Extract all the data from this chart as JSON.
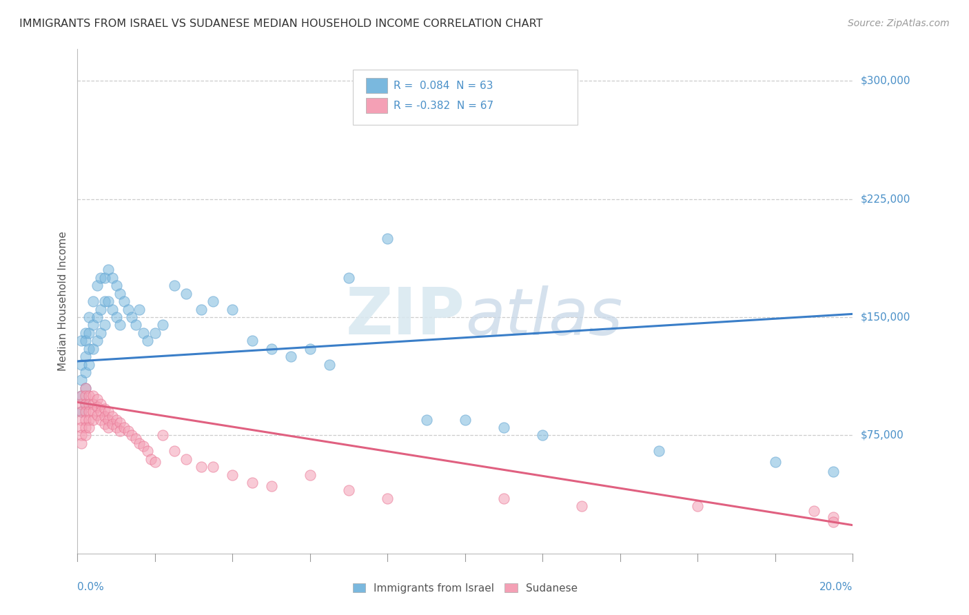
{
  "title": "IMMIGRANTS FROM ISRAEL VS SUDANESE MEDIAN HOUSEHOLD INCOME CORRELATION CHART",
  "source": "Source: ZipAtlas.com",
  "ylabel": "Median Household Income",
  "xmin": 0.0,
  "xmax": 0.2,
  "ymin": 0,
  "ymax": 320000,
  "yticks": [
    75000,
    150000,
    225000,
    300000
  ],
  "ytick_labels": [
    "$75,000",
    "$150,000",
    "$225,000",
    "$300,000"
  ],
  "watermark_zip": "ZIP",
  "watermark_atlas": "atlas",
  "background_color": "#ffffff",
  "grid_color": "#cccccc",
  "title_color": "#333333",
  "tick_label_color": "#4a90c8",
  "israel_color": "#7ab8de",
  "israel_edge": "#5a9fcf",
  "sudan_color": "#f4a0b5",
  "sudan_edge": "#e87090",
  "israel_trend_color": "#3a7ec8",
  "sudan_trend_color": "#e06080",
  "israel_trend_y0": 122000,
  "israel_trend_y1": 152000,
  "sudan_trend_y0": 96000,
  "sudan_trend_y1": 18000,
  "legend_r1": "R =  0.084  N = 63",
  "legend_r2": "R = -0.382  N = 67",
  "legend_color": "#4a90c8",
  "israel_scatter_x": [
    0.001,
    0.001,
    0.001,
    0.001,
    0.001,
    0.002,
    0.002,
    0.002,
    0.002,
    0.002,
    0.002,
    0.003,
    0.003,
    0.003,
    0.003,
    0.004,
    0.004,
    0.004,
    0.005,
    0.005,
    0.005,
    0.006,
    0.006,
    0.006,
    0.007,
    0.007,
    0.007,
    0.008,
    0.008,
    0.009,
    0.009,
    0.01,
    0.01,
    0.011,
    0.011,
    0.012,
    0.013,
    0.014,
    0.015,
    0.016,
    0.017,
    0.018,
    0.02,
    0.022,
    0.025,
    0.028,
    0.032,
    0.035,
    0.04,
    0.045,
    0.05,
    0.055,
    0.06,
    0.065,
    0.07,
    0.08,
    0.09,
    0.1,
    0.11,
    0.12,
    0.15,
    0.18,
    0.195
  ],
  "israel_scatter_y": [
    135000,
    120000,
    110000,
    100000,
    90000,
    140000,
    135000,
    125000,
    115000,
    105000,
    95000,
    150000,
    140000,
    130000,
    120000,
    160000,
    145000,
    130000,
    170000,
    150000,
    135000,
    175000,
    155000,
    140000,
    175000,
    160000,
    145000,
    180000,
    160000,
    175000,
    155000,
    170000,
    150000,
    165000,
    145000,
    160000,
    155000,
    150000,
    145000,
    155000,
    140000,
    135000,
    140000,
    145000,
    170000,
    165000,
    155000,
    160000,
    155000,
    135000,
    130000,
    125000,
    130000,
    120000,
    175000,
    200000,
    85000,
    85000,
    80000,
    75000,
    65000,
    58000,
    52000
  ],
  "sudan_scatter_x": [
    0.001,
    0.001,
    0.001,
    0.001,
    0.001,
    0.001,
    0.001,
    0.002,
    0.002,
    0.002,
    0.002,
    0.002,
    0.002,
    0.002,
    0.003,
    0.003,
    0.003,
    0.003,
    0.003,
    0.004,
    0.004,
    0.004,
    0.004,
    0.005,
    0.005,
    0.005,
    0.006,
    0.006,
    0.006,
    0.007,
    0.007,
    0.007,
    0.008,
    0.008,
    0.008,
    0.009,
    0.009,
    0.01,
    0.01,
    0.011,
    0.011,
    0.012,
    0.013,
    0.014,
    0.015,
    0.016,
    0.017,
    0.018,
    0.019,
    0.02,
    0.022,
    0.025,
    0.028,
    0.032,
    0.035,
    0.04,
    0.045,
    0.05,
    0.06,
    0.07,
    0.08,
    0.11,
    0.13,
    0.16,
    0.19,
    0.195,
    0.195
  ],
  "sudan_scatter_y": [
    100000,
    95000,
    90000,
    85000,
    80000,
    75000,
    70000,
    105000,
    100000,
    95000,
    90000,
    85000,
    80000,
    75000,
    100000,
    95000,
    90000,
    85000,
    80000,
    100000,
    95000,
    90000,
    85000,
    98000,
    93000,
    88000,
    95000,
    90000,
    85000,
    92000,
    87000,
    82000,
    90000,
    85000,
    80000,
    87000,
    82000,
    85000,
    80000,
    83000,
    78000,
    80000,
    78000,
    75000,
    73000,
    70000,
    68000,
    65000,
    60000,
    58000,
    75000,
    65000,
    60000,
    55000,
    55000,
    50000,
    45000,
    43000,
    50000,
    40000,
    35000,
    35000,
    30000,
    30000,
    27000,
    23000,
    20000
  ]
}
